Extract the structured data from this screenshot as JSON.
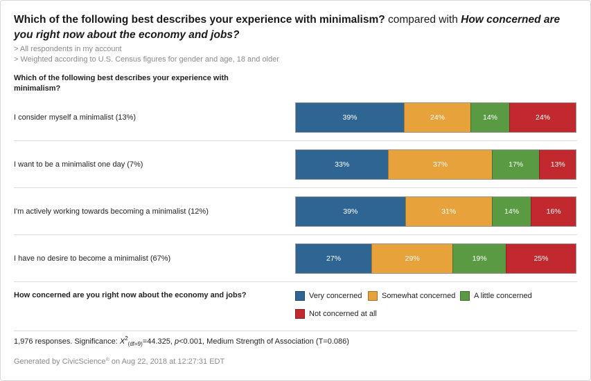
{
  "title": {
    "row_question": "Which of the following best describes your experience with minimalism?",
    "connector": " compared with ",
    "column_question": "How concerned are you right now about the economy and jobs?"
  },
  "notes": [
    "> All respondents in my account",
    "> Weighted according to U.S. Census figures for gender and age, 18 and older"
  ],
  "significance": {
    "responses": "1,976 responses. Significance: ",
    "chi": "X",
    "chi_sup": "2",
    "chi_sub": "(df=9)",
    "chi_value": "=44.325, ",
    "p_label": "p",
    "p_value": "<0.001, Medium Strength of Association (T=0.086)"
  },
  "footer": {
    "prefix": "Generated by CivicScience",
    "mark": "®",
    "suffix": " on Aug 22, 2018 at 12:27:31 EDT"
  },
  "colors": {
    "very": "#2f6592",
    "somewhat": "#e8a23b",
    "little": "#5a9a43",
    "not": "#c1292e"
  },
  "chart_data": {
    "type": "bar",
    "stacked": true,
    "orientation": "horizontal",
    "normalized": true,
    "row_axis_label": "Which of the following best describes your experience with minimalism?",
    "legend_title": "How concerned are you right now about the economy and jobs?",
    "categories": [
      "I consider myself a minimalist (13%)",
      "I want to be a minimalist one day (7%)",
      "I'm actively working towards becoming a minimalist (12%)",
      "I have no desire to become a minimalist (67%)"
    ],
    "series": [
      {
        "name": "Very concerned",
        "values": [
          39,
          33,
          39,
          27
        ],
        "color_key": "very"
      },
      {
        "name": "Somewhat concerned",
        "values": [
          24,
          37,
          31,
          29
        ],
        "color_key": "somewhat"
      },
      {
        "name": "A little concerned",
        "values": [
          14,
          17,
          14,
          19
        ],
        "color_key": "little"
      },
      {
        "name": "Not concerned at all",
        "values": [
          24,
          13,
          16,
          25
        ],
        "color_key": "not"
      }
    ],
    "value_suffix": "%",
    "legend_position": "bottom"
  }
}
